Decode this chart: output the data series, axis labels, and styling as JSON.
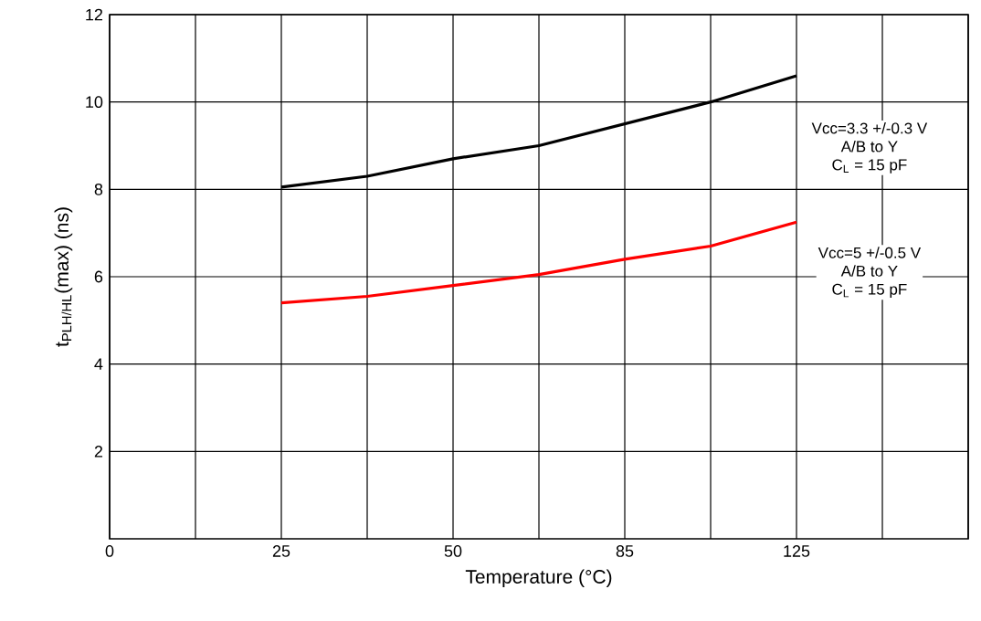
{
  "chart_data": {
    "type": "line",
    "xlabel": "Temperature (°C)",
    "ylabel": "t$_{PLH/HL}$(max) (ns)",
    "categories": [
      "0",
      null,
      "25",
      null,
      "50",
      null,
      "85",
      null,
      "125",
      null,
      null
    ],
    "series": [
      {
        "color": "#000000",
        "values": [
          null,
          null,
          8.05,
          8.3,
          8.7,
          9.0,
          9.5,
          10.0,
          10.6,
          null,
          null
        ]
      },
      {
        "color": "#ff0000",
        "values": [
          null,
          null,
          5.4,
          5.55,
          5.8,
          6.05,
          6.4,
          6.7,
          7.25,
          null,
          null
        ]
      }
    ],
    "ylim": [
      0,
      12
    ],
    "yticks": [
      2,
      4,
      6,
      8,
      10,
      12
    ],
    "grid": true,
    "marker": "none",
    "line_style": "solid",
    "annotations": [
      "Vcc=3.3 +/-0.3 V",
      "A/B to Y",
      "C$_{L}$ = 15 pF",
      "Vcc=5 +/-0.5 V",
      "A/B to Y",
      "C$_{L}$ = 15 pF"
    ]
  }
}
